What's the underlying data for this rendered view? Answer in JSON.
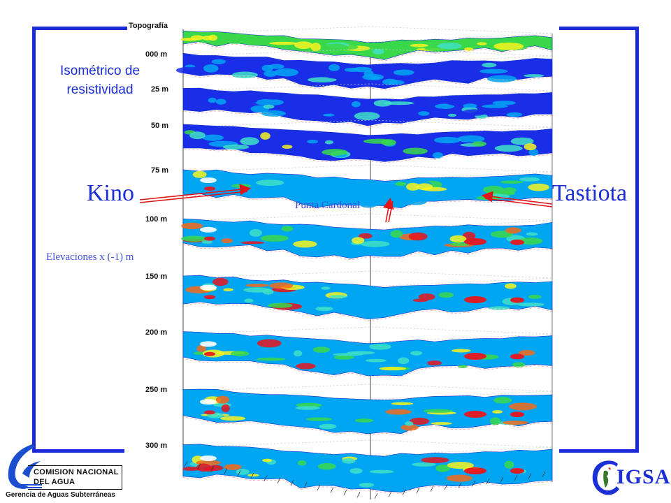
{
  "title": {
    "line1": "Isométrico de",
    "line2": "resistividad"
  },
  "labels": {
    "left_town": "Kino",
    "right_town": "Tastiota",
    "center_point": "Punta Cardonal",
    "elevation_note": "Elevaciones x (-1) m"
  },
  "stack": {
    "top_label": "Topografía",
    "layers": [
      {
        "depth": "000 m"
      },
      {
        "depth": "25 m"
      },
      {
        "depth": "50 m"
      },
      {
        "depth": "75 m"
      },
      {
        "depth": "100 m"
      },
      {
        "depth": "150 m"
      },
      {
        "depth": "200 m"
      },
      {
        "depth": "250 m"
      },
      {
        "depth": "300 m"
      }
    ]
  },
  "logos": {
    "cna_line1": "COMISION NACIONAL",
    "cna_line2": "DEL AGUA",
    "cna_sub": "Gerencia de Aguas Subterráneas",
    "cigsa": "IGSA"
  },
  "colors": {
    "frame": "#1c2bd6",
    "text_blue": "#1b2fd6",
    "arrow_red": "#e0141b",
    "palette": [
      "#1a2ee8",
      "#00a6f2",
      "#3fe0c8",
      "#39d84a",
      "#f7f31e",
      "#f56a1a",
      "#e8141c",
      "#ffffff"
    ]
  }
}
